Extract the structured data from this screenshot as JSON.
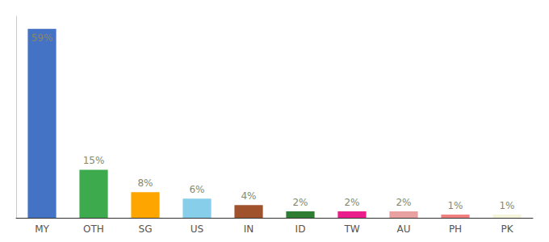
{
  "chart_data": {
    "type": "bar",
    "categories": [
      "MY",
      "OTH",
      "SG",
      "US",
      "IN",
      "ID",
      "TW",
      "AU",
      "PH",
      "PK"
    ],
    "values": [
      59,
      15,
      8,
      6,
      4,
      2,
      2,
      2,
      1,
      1
    ],
    "value_labels": [
      "59%",
      "15%",
      "8%",
      "6%",
      "4%",
      "2%",
      "2%",
      "2%",
      "1%",
      "1%"
    ],
    "colors": [
      "#4472C4",
      "#3DAA4E",
      "#FFA500",
      "#87CEEB",
      "#A0522D",
      "#2E7D32",
      "#E91E8C",
      "#E8A0A0",
      "#F08080",
      "#F5F5DC"
    ],
    "ylim": [
      0,
      63
    ],
    "data_labels": true,
    "tick_labels": "x",
    "grid": false
  }
}
